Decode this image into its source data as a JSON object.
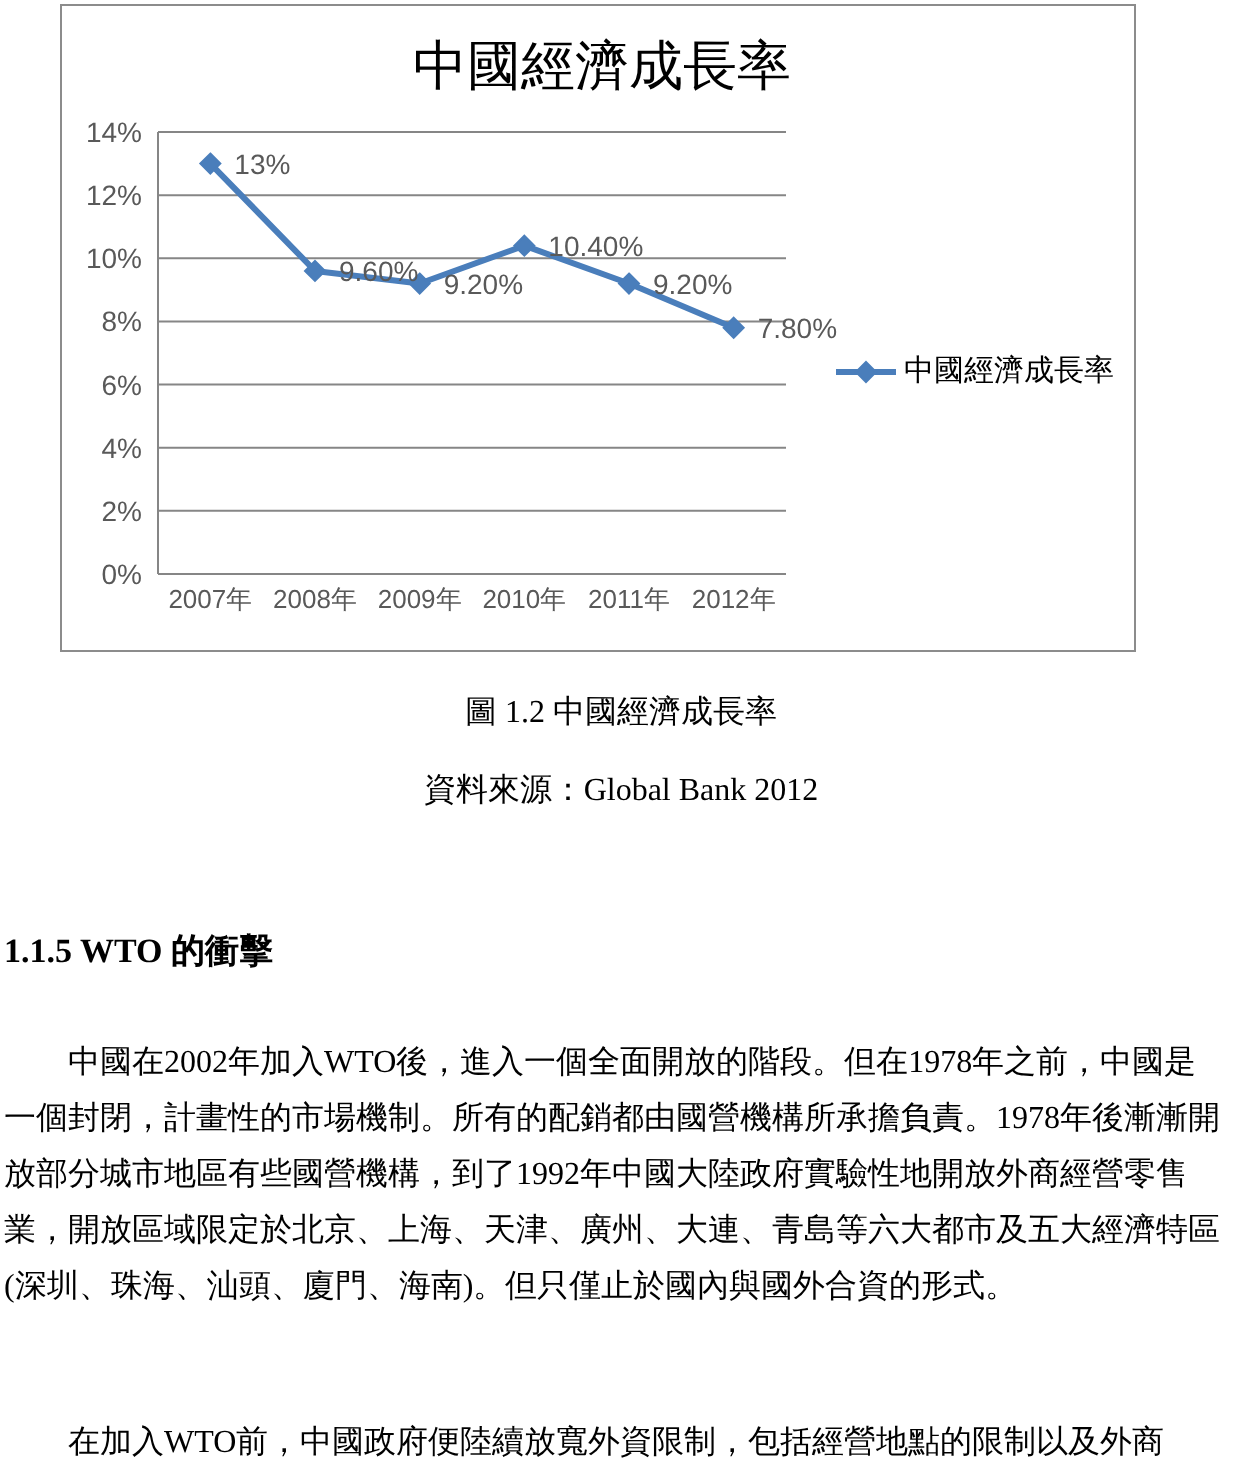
{
  "chart_data": {
    "type": "line",
    "title": "中國經濟成長率",
    "categories": [
      "2007年",
      "2008年",
      "2009年",
      "2010年",
      "2011年",
      "2012年"
    ],
    "series": [
      {
        "name": "中國經濟成長率",
        "color": "#4a7ebb",
        "values": [
          13,
          9.6,
          9.2,
          10.4,
          9.2,
          7.8
        ],
        "value_labels": [
          "13%",
          "9.60%",
          "9.20%",
          "10.40%",
          "9.20%",
          "7.80%"
        ]
      }
    ],
    "ylim": [
      0,
      14
    ],
    "yticks": [
      {
        "value": 0,
        "label": "0%"
      },
      {
        "value": 2,
        "label": "2%"
      },
      {
        "value": 4,
        "label": "4%"
      },
      {
        "value": 6,
        "label": "6%"
      },
      {
        "value": 8,
        "label": "8%"
      },
      {
        "value": 10,
        "label": "10%"
      },
      {
        "value": 12,
        "label": "12%"
      },
      {
        "value": 14,
        "label": "14%"
      }
    ],
    "grid": "y",
    "legend": "right",
    "marker": "diamond",
    "line_style": "solid",
    "annotations": [
      "圖 1.2 中國經濟成長率",
      "資料來源：Global Bank 2012",
      "1.1.5 WTO 的衝擊",
      "中國在2002年加入WTO後，進入一個全面開放的階段。但在1978年之前，中國是一個封閉，計畫性的市場機制。所有的配銷都由國營機構所承擔負責。1978年後漸漸開放部分城市地區有些國營機構，到了1992年中國大陸政府實驗性地開放外商經營零售業，開放區域限定於北京、上海、天津、廣州、大連、青島等六大都市及五大經濟特區(深圳、珠海、汕頭、廈門、海南)。但只僅止於國內與國外合資的形式。",
      "在加入WTO前，中國政府便陸續放寬外資限制，包括經營地點的限制以及外商"
    ]
  }
}
